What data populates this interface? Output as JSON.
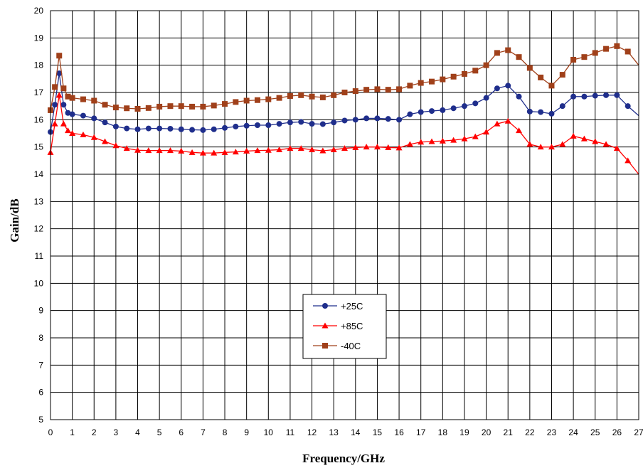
{
  "chart_data": {
    "type": "line",
    "title": "",
    "xlabel": "Frequency/GHz",
    "ylabel": "Gain/dB",
    "xlim": [
      0,
      27
    ],
    "ylim": [
      5,
      20
    ],
    "x_ticks": [
      "0",
      "1",
      "2",
      "3",
      "4",
      "5",
      "6",
      "7",
      "8",
      "9",
      "10",
      "11",
      "12",
      "13",
      "14",
      "15",
      "16",
      "17",
      "18",
      "19",
      "20",
      "21",
      "22",
      "23",
      "24",
      "25",
      "26",
      "27"
    ],
    "y_ticks": [
      "5",
      "6",
      "7",
      "8",
      "9",
      "10",
      "11",
      "12",
      "13",
      "14",
      "15",
      "16",
      "17",
      "18",
      "19",
      "20"
    ],
    "grid": true,
    "legend_position": "lower-center",
    "x": [
      0,
      0.2,
      0.4,
      0.6,
      0.8,
      1,
      1.5,
      2,
      2.5,
      3,
      3.5,
      4,
      4.5,
      5,
      5.5,
      6,
      6.5,
      7,
      7.5,
      8,
      8.5,
      9,
      9.5,
      10,
      10.5,
      11,
      11.5,
      12,
      12.5,
      13,
      13.5,
      14,
      14.5,
      15,
      15.5,
      16,
      16.5,
      17,
      17.5,
      18,
      18.5,
      19,
      19.5,
      20,
      20.5,
      21,
      21.5,
      22,
      22.5,
      23,
      23.5,
      24,
      24.5,
      25,
      25.5,
      26,
      26.5,
      27
    ],
    "series": [
      {
        "name": "+25C",
        "color": "#1f2e8c",
        "marker": "circle",
        "values": [
          15.55,
          16.55,
          17.7,
          16.55,
          16.25,
          16.2,
          16.15,
          16.05,
          15.9,
          15.75,
          15.68,
          15.65,
          15.68,
          15.68,
          15.67,
          15.65,
          15.63,
          15.62,
          15.65,
          15.7,
          15.75,
          15.78,
          15.8,
          15.8,
          15.85,
          15.9,
          15.92,
          15.85,
          15.84,
          15.9,
          15.97,
          16.0,
          16.05,
          16.05,
          16.03,
          16.0,
          16.2,
          16.28,
          16.32,
          16.35,
          16.42,
          16.5,
          16.6,
          16.8,
          17.15,
          17.25,
          16.85,
          16.3,
          16.28,
          16.22,
          16.5,
          16.85,
          16.85,
          16.88,
          16.9,
          16.9,
          16.5,
          16.15
        ]
      },
      {
        "name": "+85C",
        "color": "#ff0000",
        "marker": "triangle",
        "values": [
          14.8,
          15.85,
          16.9,
          15.85,
          15.6,
          15.5,
          15.45,
          15.35,
          15.2,
          15.05,
          14.95,
          14.88,
          14.87,
          14.87,
          14.87,
          14.85,
          14.8,
          14.78,
          14.78,
          14.8,
          14.82,
          14.85,
          14.87,
          14.88,
          14.9,
          14.95,
          14.95,
          14.9,
          14.86,
          14.9,
          14.95,
          14.98,
          15.0,
          15.0,
          14.98,
          14.97,
          15.1,
          15.18,
          15.2,
          15.22,
          15.25,
          15.3,
          15.38,
          15.55,
          15.85,
          15.95,
          15.6,
          15.1,
          15.0,
          15.0,
          15.1,
          15.4,
          15.3,
          15.2,
          15.1,
          14.95,
          14.5,
          14.0
        ]
      },
      {
        "name": "-40C",
        "color": "#a0401a",
        "marker": "square",
        "values": [
          16.35,
          17.2,
          18.35,
          17.15,
          16.85,
          16.8,
          16.75,
          16.7,
          16.55,
          16.45,
          16.42,
          16.4,
          16.43,
          16.48,
          16.5,
          16.5,
          16.48,
          16.48,
          16.52,
          16.58,
          16.65,
          16.7,
          16.72,
          16.75,
          16.8,
          16.87,
          16.9,
          16.85,
          16.82,
          16.9,
          17.0,
          17.05,
          17.1,
          17.12,
          17.1,
          17.12,
          17.25,
          17.35,
          17.4,
          17.48,
          17.58,
          17.68,
          17.8,
          18.0,
          18.45,
          18.55,
          18.3,
          17.9,
          17.55,
          17.25,
          17.65,
          18.2,
          18.3,
          18.45,
          18.6,
          18.7,
          18.5,
          18.0
        ]
      }
    ]
  }
}
